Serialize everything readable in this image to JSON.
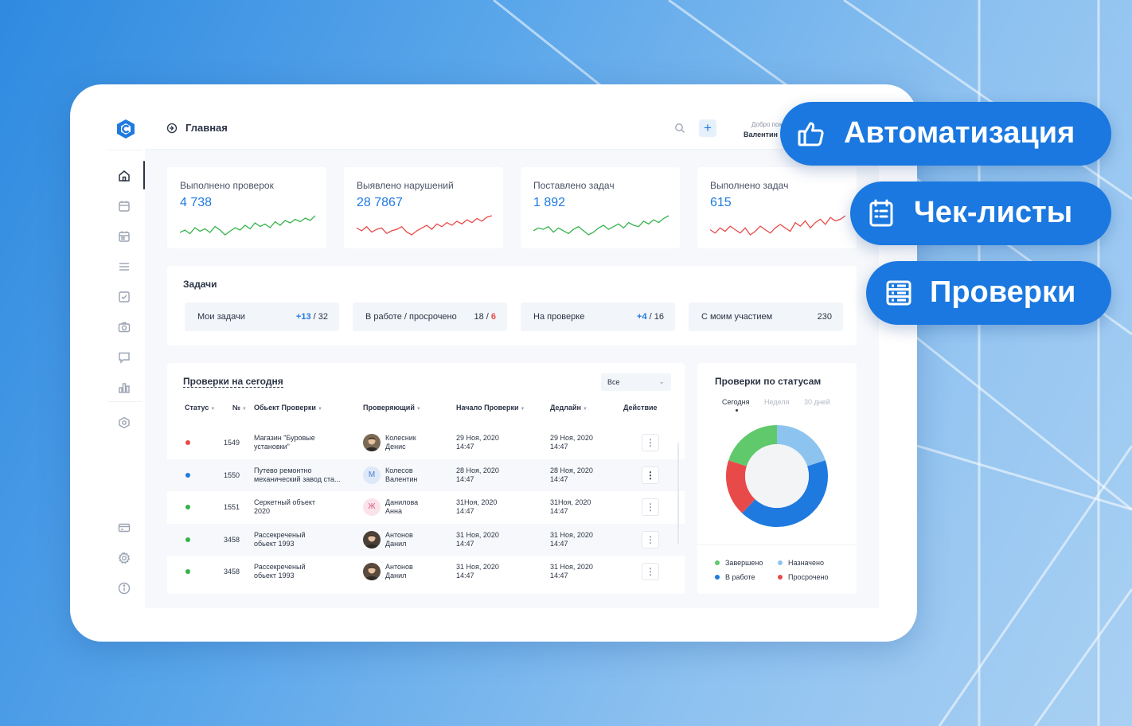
{
  "app": {
    "page_title": "Главная",
    "welcome": "Добро пож",
    "username": "Валентин",
    "plus": "+"
  },
  "sidebar": {
    "icons": [
      "home-icon",
      "calendar-icon",
      "calendar-event-icon",
      "menu-icon",
      "checkbox-icon",
      "camera-icon",
      "chat-icon",
      "bar-chart-icon",
      "hexagon-icon",
      "card-icon",
      "gear-icon",
      "info-icon"
    ],
    "active": "home-icon"
  },
  "stats": [
    {
      "label": "Выполнено проверок",
      "value": "4 738",
      "trend_color": "#35b34a",
      "trend": [
        8,
        10,
        7,
        12,
        9,
        11,
        8,
        13,
        10,
        6,
        9,
        12,
        10,
        14,
        11,
        16,
        13,
        15,
        12,
        17,
        14,
        18,
        16,
        19,
        17,
        20,
        18,
        22
      ]
    },
    {
      "label": "Выявлено нарушений",
      "value": "28 7867",
      "trend_color": "#e84a4a",
      "trend": [
        12,
        10,
        13,
        9,
        11,
        12,
        8,
        10,
        11,
        13,
        9,
        7,
        10,
        12,
        14,
        11,
        15,
        13,
        16,
        14,
        17,
        15,
        18,
        16,
        19,
        17,
        20,
        21
      ]
    },
    {
      "label": "Поставлено задач",
      "value": "1 892",
      "trend_color": "#35b34a",
      "trend": [
        10,
        12,
        11,
        13,
        9,
        12,
        10,
        8,
        11,
        13,
        10,
        7,
        9,
        12,
        14,
        11,
        13,
        15,
        12,
        16,
        14,
        13,
        17,
        15,
        18,
        16,
        19,
        21
      ]
    },
    {
      "label": "Выполнено задач",
      "value": "615",
      "trend_color": "#e84a4a",
      "trend": [
        11,
        9,
        12,
        10,
        13,
        11,
        9,
        12,
        8,
        10,
        13,
        11,
        9,
        12,
        14,
        12,
        10,
        15,
        13,
        16,
        12,
        15,
        17,
        14,
        18,
        16,
        17,
        19
      ]
    }
  ],
  "tasks": {
    "title": "Задачи",
    "items": [
      {
        "label": "Мои задачи",
        "a": "+13",
        "sep": " / ",
        "b": "32"
      },
      {
        "label": "В работе / просрочено",
        "a": "18",
        "sep": " / ",
        "b": "6"
      },
      {
        "label": "На проверке",
        "a": "+4",
        "sep": " / ",
        "b": "16"
      },
      {
        "label": "С моим участием",
        "a": "230"
      }
    ]
  },
  "checks": {
    "title": "Проверки на сегодня",
    "filter": "Все",
    "columns": [
      "Статус",
      "№",
      "Обьект Проверки",
      "Проверяющий",
      "Начало Проверки",
      "Дедлайн",
      "Действие"
    ],
    "rows": [
      {
        "status_color": "#e84a4a",
        "num": "1549",
        "obj1": "Магазин \"Буровые",
        "obj2": "установки\"",
        "insp1": "Колесник",
        "insp2": "Денис",
        "avatar": "photo",
        "avatar_bg": "#7a6a55",
        "start1": "29 Ноя, 2020",
        "start2": "14:47",
        "dead1": "29 Ноя, 2020",
        "dead2": "14:47"
      },
      {
        "status_color": "#1f7ae0",
        "num": "1550",
        "obj1": "Путево ремонтно",
        "obj2": "механический завод ста...",
        "insp1": "Колесов",
        "insp2": "Валентин",
        "avatar": "М",
        "avatar_bg": "#dde9f8",
        "avatar_fg": "#4a7fc8",
        "start1": "28 Ноя, 2020",
        "start2": "14:47",
        "dead1": "28 Ноя, 2020",
        "dead2": "14:47"
      },
      {
        "status_color": "#35b34a",
        "num": "1551",
        "obj1": "Серкетный объект",
        "obj2": "2020",
        "insp1": "Данилова",
        "insp2": "Анна",
        "avatar": "Ж",
        "avatar_bg": "#fbe3ea",
        "avatar_fg": "#e0577d",
        "start1": "31Ноя, 2020",
        "start2": "14:47",
        "dead1": "31Ноя, 2020",
        "dead2": "14:47"
      },
      {
        "status_color": "#35b34a",
        "num": "3458",
        "obj1": "Рассекреченый",
        "obj2": "обьект 1993",
        "insp1": "Антонов",
        "insp2": "Данил",
        "avatar": "photo",
        "avatar_bg": "#4a4038",
        "start1": "31 Ноя, 2020",
        "start2": "14:47",
        "dead1": "31 Ноя, 2020",
        "dead2": "14:47"
      },
      {
        "status_color": "#35b34a",
        "num": "3458",
        "obj1": "Рассекреченый",
        "obj2": "обьект 1993",
        "insp1": "Антонов",
        "insp2": "Данил",
        "avatar": "photo",
        "avatar_bg": "#5a4a3e",
        "start1": "31 Ноя, 2020",
        "start2": "14:47",
        "dead1": "31 Ноя, 2020",
        "dead2": "14:47"
      }
    ]
  },
  "status_chart": {
    "title": "Проверки по статусам",
    "tabs": [
      "Сегодня",
      "Неделя",
      "30 дней"
    ],
    "active_tab": "Сегодня",
    "legend": [
      {
        "name": "Завершено",
        "color": "#5fc96b"
      },
      {
        "name": "Назначено",
        "color": "#8cc4ef"
      },
      {
        "name": "В работе",
        "color": "#1f7ae0"
      },
      {
        "name": "Просрочено",
        "color": "#e84a4a"
      }
    ]
  },
  "chart_data": {
    "type": "pie",
    "title": "Проверки по статусам",
    "categories": [
      "Назначено",
      "В работе",
      "Просрочено",
      "Завершено"
    ],
    "values": [
      20,
      42,
      18,
      20
    ],
    "colors": [
      "#8cc4ef",
      "#1f7ae0",
      "#e84a4a",
      "#5fc96b"
    ],
    "donut": true
  },
  "badges": [
    {
      "text": "Автоматизация",
      "icon": "thumbs-up-icon"
    },
    {
      "text": "Чек-листы",
      "icon": "checklist-icon"
    },
    {
      "text": "Проверки",
      "icon": "server-list-icon"
    }
  ]
}
